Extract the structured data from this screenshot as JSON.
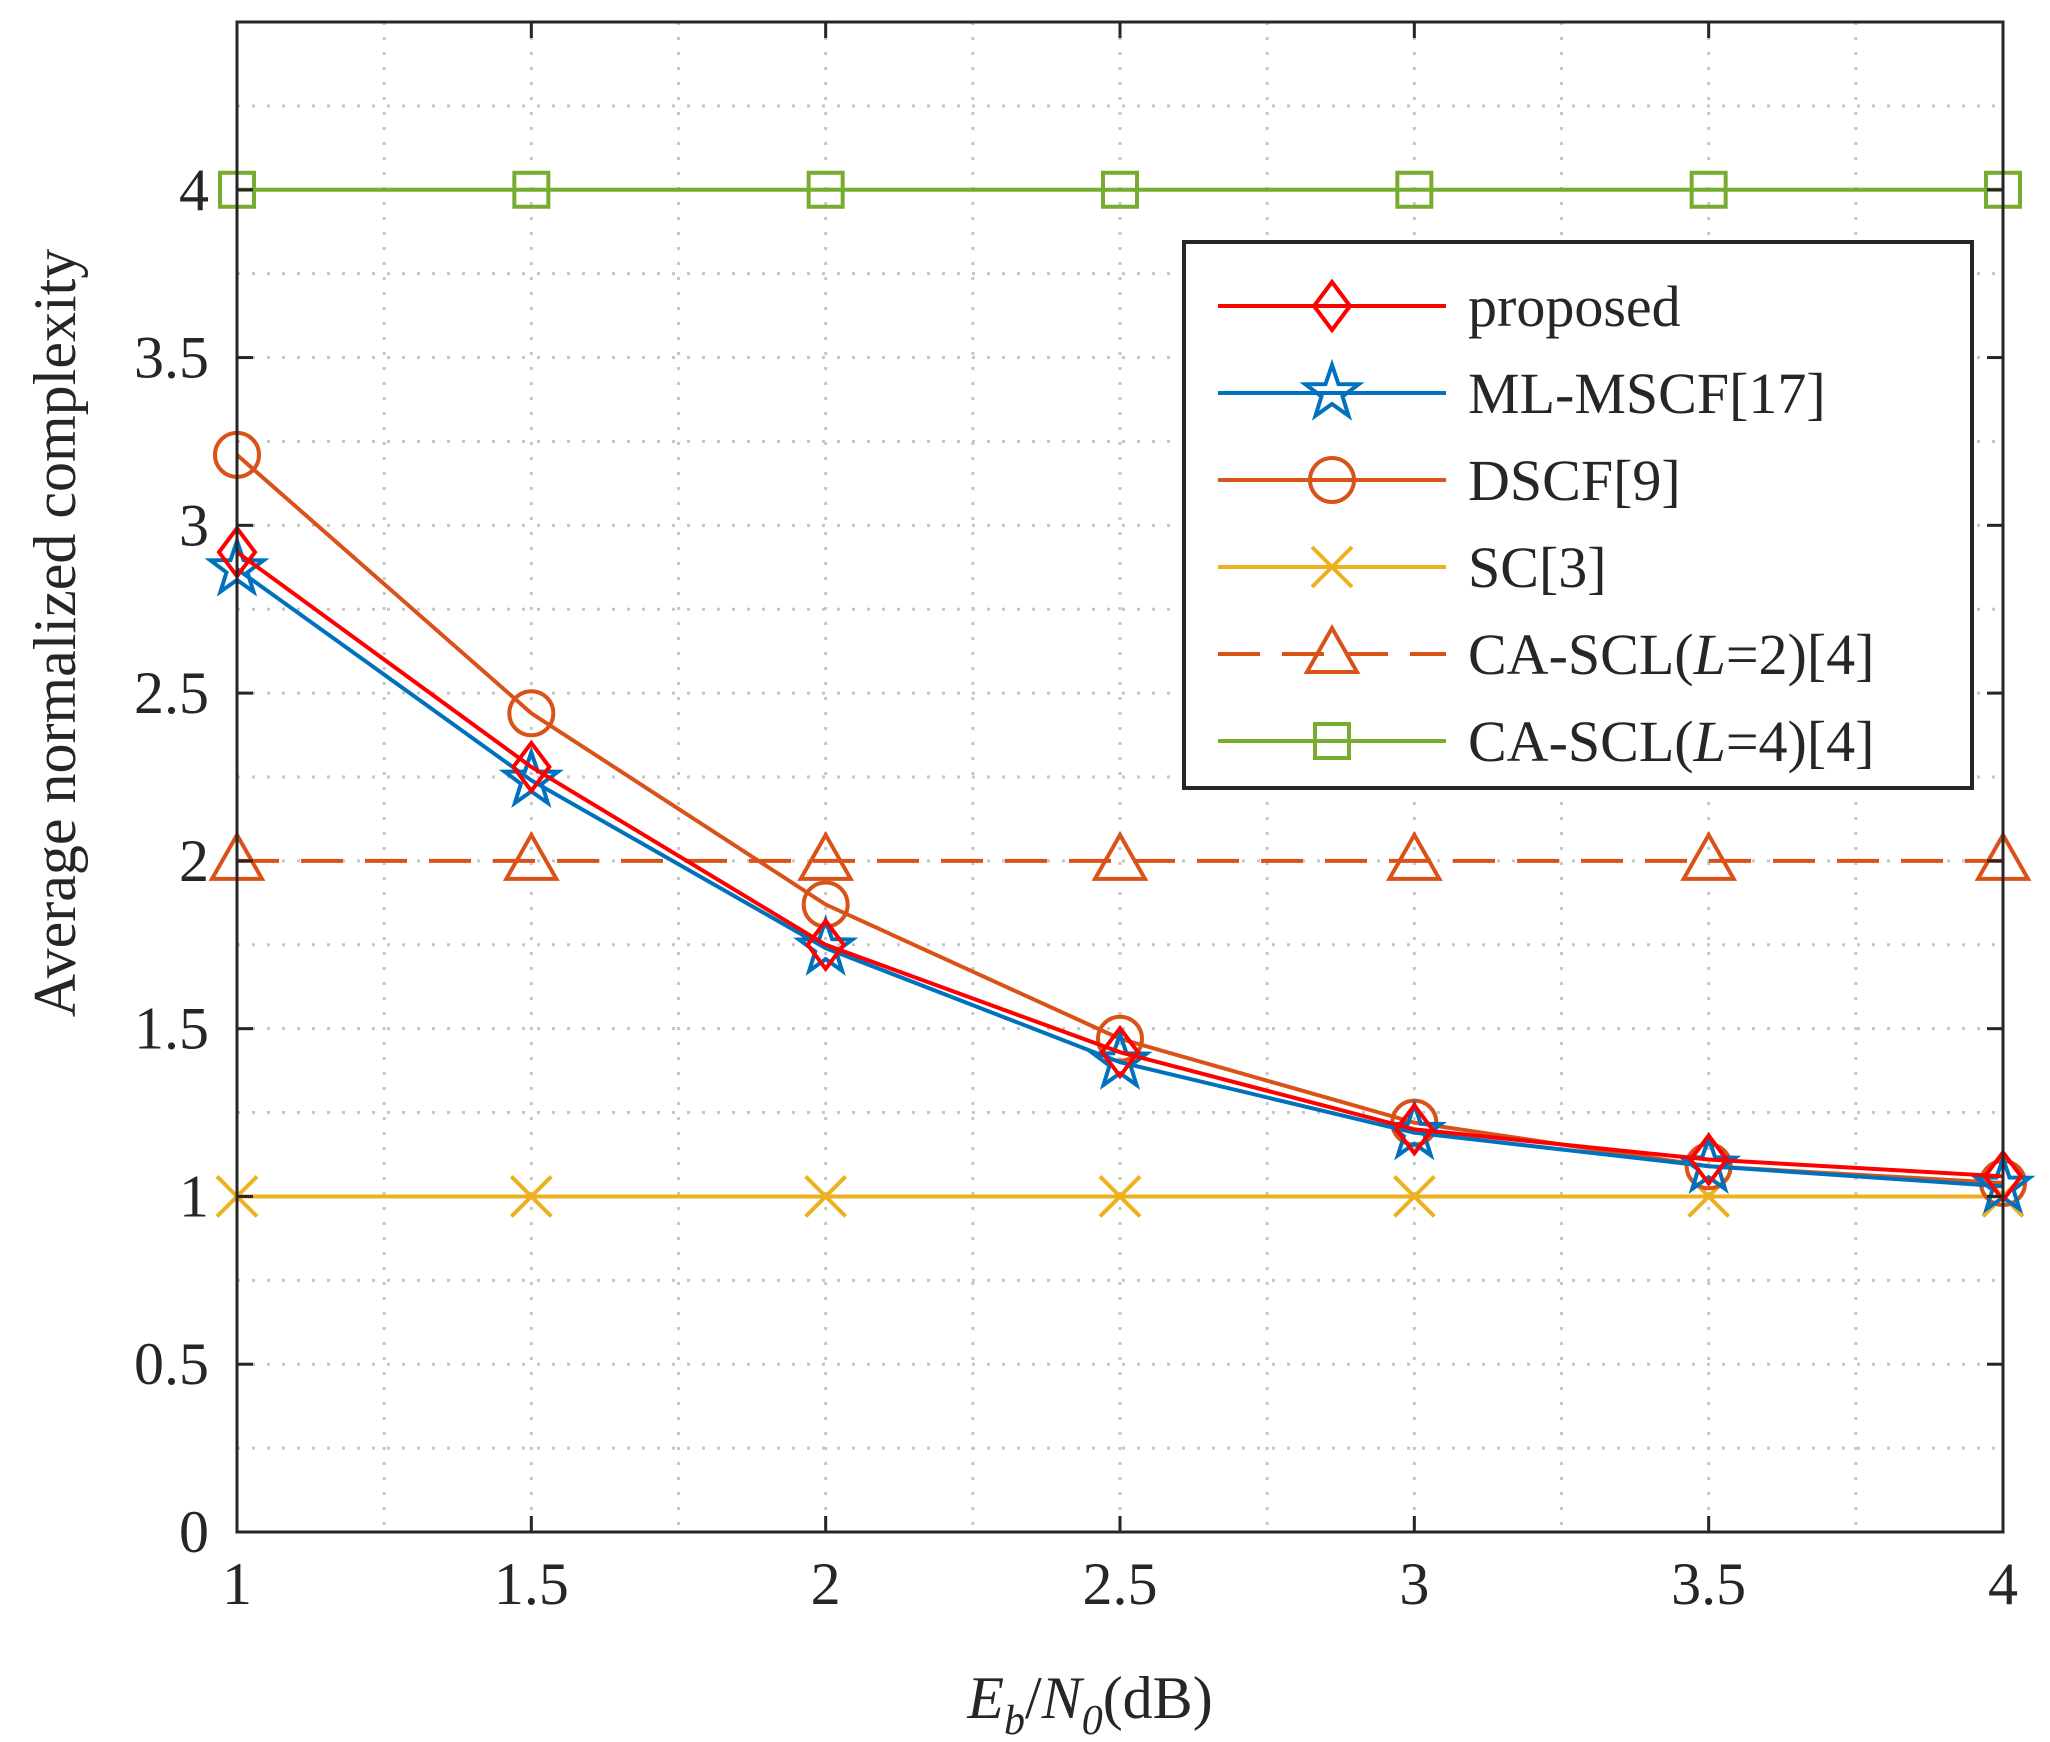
{
  "chart_data": {
    "type": "line",
    "title": "",
    "xlabel": {
      "e": "E",
      "b": "b",
      "slash": "/",
      "n": "N",
      "zero": "0",
      "unit": "(dB)"
    },
    "ylabel": "Average normalized complexity",
    "xlim": [
      1,
      4
    ],
    "ylim": [
      0,
      4.5
    ],
    "grid": true,
    "legend_position": "top-right",
    "xticks": [
      1,
      1.5,
      2,
      2.5,
      3,
      3.5,
      4
    ],
    "xtick_labels": [
      "1",
      "1.5",
      "2",
      "2.5",
      "3",
      "3.5",
      "4"
    ],
    "yticks": [
      0,
      0.5,
      1,
      1.5,
      2,
      2.5,
      3,
      3.5,
      4
    ],
    "ytick_labels": [
      "0",
      "0.5",
      "1",
      "1.5",
      "2",
      "2.5",
      "3",
      "3.5",
      "4"
    ],
    "x": [
      1,
      1.5,
      2,
      2.5,
      3,
      3.5,
      4
    ],
    "series": [
      {
        "name": "proposed",
        "color": "#ff0000",
        "marker": "diamond",
        "dash": "solid",
        "values": [
          2.92,
          2.28,
          1.75,
          1.43,
          1.2,
          1.11,
          1.06
        ]
      },
      {
        "name": "ML-MSCF[17]",
        "color": "#0072bd",
        "marker": "star",
        "dash": "solid",
        "values": [
          2.87,
          2.24,
          1.74,
          1.4,
          1.19,
          1.09,
          1.03
        ]
      },
      {
        "name": "DSCF[9]",
        "color": "#d95319",
        "marker": "circle",
        "dash": "solid",
        "values": [
          3.21,
          2.44,
          1.87,
          1.47,
          1.22,
          1.09,
          1.04
        ]
      },
      {
        "name": "SC[3]",
        "color": "#edb120",
        "marker": "x",
        "dash": "solid",
        "values": [
          1,
          1,
          1,
          1,
          1,
          1,
          1
        ]
      },
      {
        "name_parts": [
          "CA-SCL(",
          "L",
          "=2)[4]"
        ],
        "color": "#d95319",
        "marker": "triangle",
        "dash": "dashed",
        "values": [
          2,
          2,
          2,
          2,
          2,
          2,
          2
        ]
      },
      {
        "name_parts": [
          "CA-SCL(",
          "L",
          "=4)[4]"
        ],
        "color": "#77ac30",
        "marker": "square",
        "dash": "solid",
        "values": [
          4,
          4,
          4,
          4,
          4,
          4,
          4
        ]
      }
    ]
  }
}
